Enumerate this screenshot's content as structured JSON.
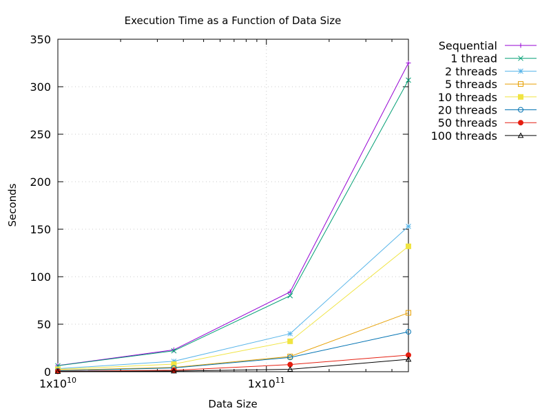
{
  "chart_data": {
    "type": "line",
    "title": "Execution Time as a Function of Data Size",
    "xlabel": "Data Size",
    "ylabel": "Seconds",
    "x_scale": "log",
    "xlim": [
      10000000000,
      480000000000
    ],
    "ylim": [
      0,
      350
    ],
    "x_ticks": [
      {
        "value": 10000000000,
        "label": "1x10¹⁰"
      },
      {
        "value": 100000000000,
        "label": "1x10¹¹"
      }
    ],
    "y_ticks": [
      0,
      50,
      100,
      150,
      200,
      250,
      300,
      350
    ],
    "grid": true,
    "legend_position": "outside top-right",
    "x": [
      10000000000,
      36000000000,
      130000000000,
      480000000000
    ],
    "series": [
      {
        "name": "Sequential",
        "color": "#9400d3",
        "marker": "plus",
        "values": [
          6.5,
          23,
          84,
          325
        ]
      },
      {
        "name": "1 thread",
        "color": "#009e73",
        "marker": "cross",
        "values": [
          6.3,
          22,
          80,
          307
        ]
      },
      {
        "name": "2 threads",
        "color": "#56b4e9",
        "marker": "star",
        "values": [
          3.2,
          11,
          40,
          153
        ]
      },
      {
        "name": "5 threads",
        "color": "#e69f00",
        "marker": "open-square",
        "values": [
          1.5,
          4.5,
          16,
          62
        ]
      },
      {
        "name": "10 threads",
        "color": "#f0e442",
        "marker": "filled-square",
        "values": [
          2.5,
          8,
          32,
          132
        ]
      },
      {
        "name": "20 threads",
        "color": "#0072b2",
        "marker": "open-circle",
        "values": [
          1.0,
          4,
          15,
          42
        ]
      },
      {
        "name": "50 threads",
        "color": "#e51e10",
        "marker": "filled-circle",
        "values": [
          0.4,
          1.5,
          7.5,
          17.5
        ]
      },
      {
        "name": "100 threads",
        "color": "#000000",
        "marker": "open-triangle",
        "values": [
          0.2,
          0.7,
          2.5,
          13
        ]
      }
    ]
  }
}
